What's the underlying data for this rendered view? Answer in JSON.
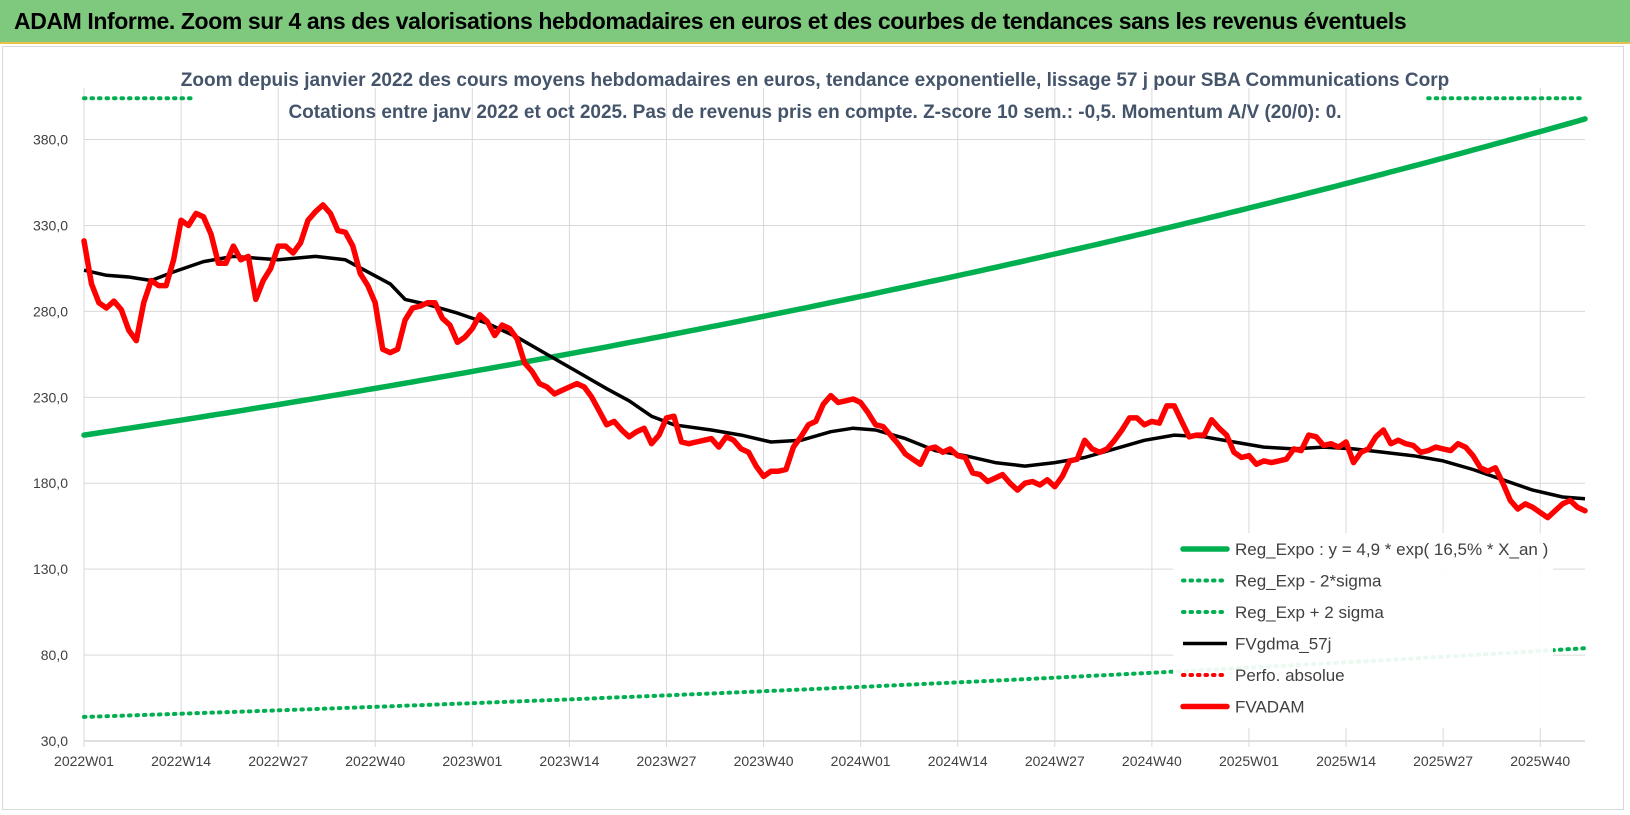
{
  "banner": {
    "title": "ADAM Informe. Zoom sur 4 ans des valorisations hebdomadaires en euros et des courbes de tendances sans les revenus éventuels"
  },
  "colors": {
    "banner": "#7fc97f",
    "reg_expo": "#00b050",
    "fvgdma": "#000000",
    "fvadam": "#ff0000",
    "perfo": "#ff0000",
    "title_text": "#44546a"
  },
  "chart_data": {
    "type": "line",
    "title": "Zoom depuis janvier 2022 des cours moyens hebdomadaires en euros, tendance exponentielle, lissage 57 j pour SBA Communications Corp",
    "subtitle": "Cotations entre janv 2022 et oct 2025. Pas de revenus pris en compte. Z-score 10 sem.: -0,5.  Momentum A/V (20/0): 0.",
    "xlabel": "",
    "ylabel": "",
    "ylim": [
      30,
      410
    ],
    "y_ticks": [
      "30,0",
      "80,0",
      "130,0",
      "180,0",
      "230,0",
      "280,0",
      "330,0",
      "380,0"
    ],
    "x_tick_labels": [
      "2022W01",
      "2022W14",
      "2022W27",
      "2022W40",
      "2023W01",
      "2023W14",
      "2023W27",
      "2023W40",
      "2024W01",
      "2024W14",
      "2024W27",
      "2024W40",
      "2025W01",
      "2025W14",
      "2025W27",
      "2025W40"
    ],
    "x_tick_index": [
      0,
      13,
      26,
      39,
      52,
      65,
      78,
      91,
      104,
      117,
      130,
      143,
      156,
      169,
      182,
      195
    ],
    "weeks": 202,
    "grid": true,
    "legend_position": "bottom-right",
    "series": [
      {
        "name": "Reg_Expo : y = 4,9 * exp( 16,5% * X_an )",
        "style": "solid-thick",
        "color": "#00b050",
        "start": 208,
        "end": 392
      },
      {
        "name": "Reg_Exp - 2*sigma",
        "style": "dotted",
        "color": "#00b050",
        "start": 44,
        "end": 84
      },
      {
        "name": "Reg_Exp + 2 sigma",
        "style": "dotted",
        "color": "#00b050",
        "start": 404,
        "end": 404,
        "visible_ranges": [
          [
            0,
            15
          ],
          [
            180,
            202
          ]
        ]
      },
      {
        "name": "FVgdma_57j",
        "style": "solid",
        "color": "#000000",
        "points": [
          [
            0,
            304
          ],
          [
            3,
            301
          ],
          [
            6,
            300
          ],
          [
            9,
            298
          ],
          [
            12,
            303
          ],
          [
            16,
            309
          ],
          [
            20,
            312
          ],
          [
            26,
            310
          ],
          [
            31,
            312
          ],
          [
            35,
            310
          ],
          [
            38,
            303
          ],
          [
            41,
            296
          ],
          [
            43,
            287
          ],
          [
            46,
            284
          ],
          [
            50,
            279
          ],
          [
            54,
            273
          ],
          [
            58,
            265
          ],
          [
            62,
            255
          ],
          [
            66,
            245
          ],
          [
            70,
            235
          ],
          [
            73,
            228
          ],
          [
            76,
            219
          ],
          [
            79,
            214
          ],
          [
            84,
            211
          ],
          [
            88,
            208
          ],
          [
            92,
            204
          ],
          [
            96,
            205
          ],
          [
            100,
            210
          ],
          [
            103,
            212
          ],
          [
            106,
            211
          ],
          [
            110,
            206
          ],
          [
            114,
            199
          ],
          [
            118,
            196
          ],
          [
            122,
            192
          ],
          [
            126,
            190
          ],
          [
            130,
            192
          ],
          [
            134,
            195
          ],
          [
            138,
            200
          ],
          [
            142,
            205
          ],
          [
            146,
            208
          ],
          [
            150,
            207
          ],
          [
            154,
            204
          ],
          [
            158,
            201
          ],
          [
            162,
            200
          ],
          [
            166,
            201
          ],
          [
            170,
            200
          ],
          [
            174,
            198
          ],
          [
            178,
            196
          ],
          [
            182,
            193
          ],
          [
            186,
            188
          ],
          [
            190,
            182
          ],
          [
            194,
            176
          ],
          [
            198,
            172
          ],
          [
            201,
            171
          ]
        ]
      },
      {
        "name": "Perfo. absolue",
        "style": "dotted",
        "color": "#ff0000",
        "points": []
      },
      {
        "name": "FVADAM",
        "style": "solid-thick",
        "color": "#ff0000",
        "points": [
          [
            0,
            321
          ],
          [
            1,
            296
          ],
          [
            2,
            285
          ],
          [
            3,
            282
          ],
          [
            4,
            286
          ],
          [
            5,
            281
          ],
          [
            6,
            269
          ],
          [
            7,
            263
          ],
          [
            8,
            285
          ],
          [
            9,
            298
          ],
          [
            10,
            295
          ],
          [
            11,
            295
          ],
          [
            12,
            310
          ],
          [
            13,
            333
          ],
          [
            14,
            330
          ],
          [
            15,
            337
          ],
          [
            16,
            335
          ],
          [
            17,
            325
          ],
          [
            18,
            308
          ],
          [
            19,
            308
          ],
          [
            20,
            318
          ],
          [
            21,
            310
          ],
          [
            22,
            312
          ],
          [
            23,
            287
          ],
          [
            24,
            298
          ],
          [
            25,
            305
          ],
          [
            26,
            318
          ],
          [
            27,
            318
          ],
          [
            28,
            314
          ],
          [
            29,
            320
          ],
          [
            30,
            333
          ],
          [
            31,
            338
          ],
          [
            32,
            342
          ],
          [
            33,
            337
          ],
          [
            34,
            327
          ],
          [
            35,
            326
          ],
          [
            36,
            318
          ],
          [
            37,
            302
          ],
          [
            38,
            295
          ],
          [
            39,
            285
          ],
          [
            40,
            258
          ],
          [
            41,
            256
          ],
          [
            42,
            258
          ],
          [
            43,
            275
          ],
          [
            44,
            282
          ],
          [
            45,
            283
          ],
          [
            46,
            285
          ],
          [
            47,
            285
          ],
          [
            48,
            276
          ],
          [
            49,
            272
          ],
          [
            50,
            262
          ],
          [
            51,
            265
          ],
          [
            52,
            270
          ],
          [
            53,
            278
          ],
          [
            54,
            274
          ],
          [
            55,
            266
          ],
          [
            56,
            272
          ],
          [
            57,
            270
          ],
          [
            58,
            264
          ],
          [
            59,
            250
          ],
          [
            60,
            245
          ],
          [
            61,
            238
          ],
          [
            62,
            236
          ],
          [
            63,
            232
          ],
          [
            64,
            234
          ],
          [
            65,
            236
          ],
          [
            66,
            238
          ],
          [
            67,
            236
          ],
          [
            68,
            230
          ],
          [
            69,
            222
          ],
          [
            70,
            214
          ],
          [
            71,
            216
          ],
          [
            72,
            211
          ],
          [
            73,
            207
          ],
          [
            74,
            210
          ],
          [
            75,
            212
          ],
          [
            76,
            203
          ],
          [
            77,
            208
          ],
          [
            78,
            218
          ],
          [
            79,
            219
          ],
          [
            80,
            204
          ],
          [
            81,
            203
          ],
          [
            82,
            204
          ],
          [
            83,
            205
          ],
          [
            84,
            206
          ],
          [
            85,
            201
          ],
          [
            86,
            207
          ],
          [
            87,
            205
          ],
          [
            88,
            200
          ],
          [
            89,
            198
          ],
          [
            90,
            190
          ],
          [
            91,
            184
          ],
          [
            92,
            187
          ],
          [
            93,
            187
          ],
          [
            94,
            188
          ],
          [
            95,
            201
          ],
          [
            96,
            207
          ],
          [
            97,
            214
          ],
          [
            98,
            216
          ],
          [
            99,
            226
          ],
          [
            100,
            231
          ],
          [
            101,
            227
          ],
          [
            102,
            228
          ],
          [
            103,
            229
          ],
          [
            104,
            227
          ],
          [
            105,
            221
          ],
          [
            106,
            214
          ],
          [
            107,
            213
          ],
          [
            108,
            208
          ],
          [
            109,
            203
          ],
          [
            110,
            197
          ],
          [
            111,
            194
          ],
          [
            112,
            191
          ],
          [
            113,
            200
          ],
          [
            114,
            201
          ],
          [
            115,
            198
          ],
          [
            116,
            200
          ],
          [
            117,
            196
          ],
          [
            118,
            195
          ],
          [
            119,
            186
          ],
          [
            120,
            185
          ],
          [
            121,
            181
          ],
          [
            122,
            183
          ],
          [
            123,
            185
          ],
          [
            124,
            180
          ],
          [
            125,
            176
          ],
          [
            126,
            180
          ],
          [
            127,
            181
          ],
          [
            128,
            179
          ],
          [
            129,
            182
          ],
          [
            130,
            178
          ],
          [
            131,
            184
          ],
          [
            132,
            193
          ],
          [
            133,
            194
          ],
          [
            134,
            205
          ],
          [
            135,
            200
          ],
          [
            136,
            198
          ],
          [
            137,
            200
          ],
          [
            138,
            205
          ],
          [
            139,
            211
          ],
          [
            140,
            218
          ],
          [
            141,
            218
          ],
          [
            142,
            214
          ],
          [
            143,
            216
          ],
          [
            144,
            215
          ],
          [
            145,
            225
          ],
          [
            146,
            225
          ],
          [
            147,
            216
          ],
          [
            148,
            207
          ],
          [
            149,
            208
          ],
          [
            150,
            208
          ],
          [
            151,
            217
          ],
          [
            152,
            212
          ],
          [
            153,
            208
          ],
          [
            154,
            198
          ],
          [
            155,
            195
          ],
          [
            156,
            196
          ],
          [
            157,
            191
          ],
          [
            158,
            193
          ],
          [
            159,
            192
          ],
          [
            160,
            193
          ],
          [
            161,
            194
          ],
          [
            162,
            200
          ],
          [
            163,
            199
          ],
          [
            164,
            208
          ],
          [
            165,
            207
          ],
          [
            166,
            202
          ],
          [
            167,
            203
          ],
          [
            168,
            201
          ],
          [
            169,
            204
          ],
          [
            170,
            192
          ],
          [
            171,
            198
          ],
          [
            172,
            200
          ],
          [
            173,
            207
          ],
          [
            174,
            211
          ],
          [
            175,
            203
          ],
          [
            176,
            205
          ],
          [
            177,
            203
          ],
          [
            178,
            202
          ],
          [
            179,
            198
          ],
          [
            180,
            199
          ],
          [
            181,
            201
          ],
          [
            182,
            200
          ],
          [
            183,
            199
          ],
          [
            184,
            203
          ],
          [
            185,
            201
          ],
          [
            186,
            196
          ],
          [
            187,
            189
          ],
          [
            188,
            187
          ],
          [
            189,
            189
          ],
          [
            190,
            180
          ],
          [
            191,
            170
          ],
          [
            192,
            165
          ],
          [
            193,
            168
          ],
          [
            194,
            166
          ],
          [
            195,
            163
          ],
          [
            196,
            160
          ],
          [
            197,
            164
          ],
          [
            198,
            168
          ],
          [
            199,
            170
          ],
          [
            200,
            166
          ],
          [
            201,
            164
          ]
        ]
      }
    ]
  }
}
